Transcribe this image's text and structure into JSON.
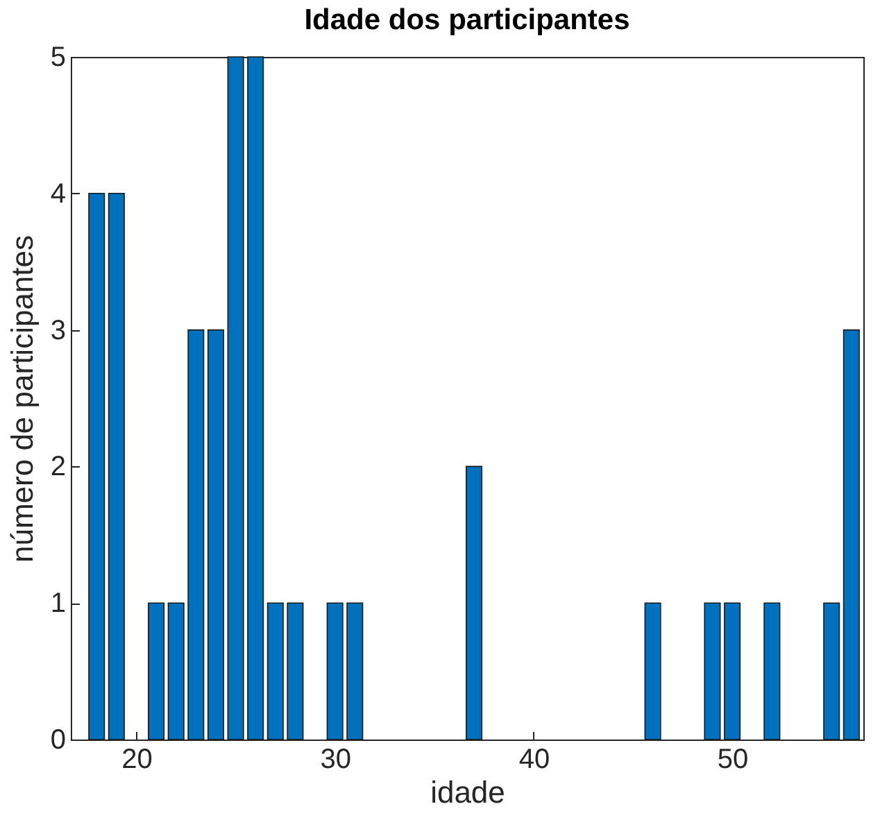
{
  "chart_data": {
    "type": "bar",
    "title": "Idade dos participantes",
    "xlabel": "idade",
    "ylabel": "número de participantes",
    "x": [
      18,
      19,
      21,
      22,
      23,
      24,
      25,
      26,
      27,
      28,
      30,
      31,
      37,
      46,
      49,
      50,
      52,
      55,
      56
    ],
    "values": [
      4,
      4,
      1,
      1,
      3,
      3,
      5,
      5,
      1,
      1,
      1,
      1,
      2,
      1,
      1,
      1,
      1,
      1,
      3
    ],
    "color": "#0072bd",
    "xlim": [
      16.7,
      56.6
    ],
    "xticks": [
      20,
      30,
      40,
      50
    ],
    "ylim": [
      0,
      5
    ],
    "yticks": [
      0,
      1,
      2,
      3,
      4,
      5
    ],
    "grid": false
  }
}
